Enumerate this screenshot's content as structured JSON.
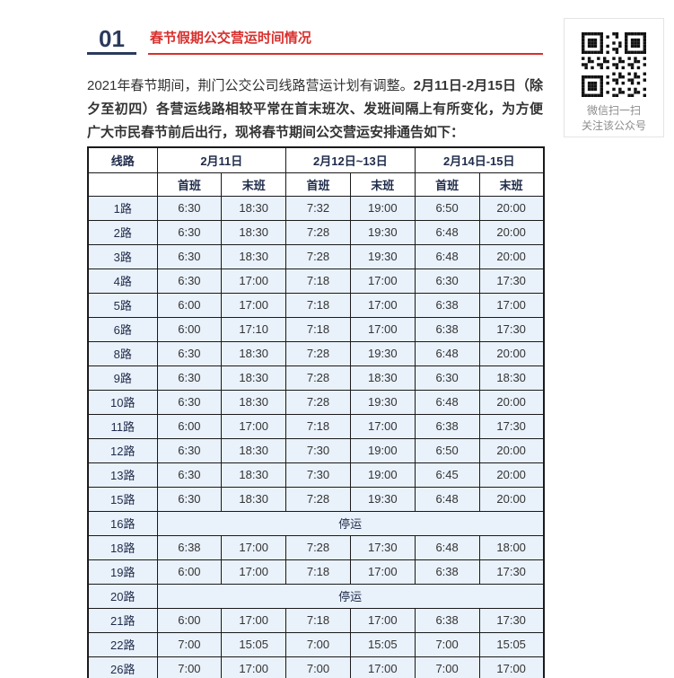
{
  "section": {
    "number": "01",
    "title": "春节假期公交营运时间情况"
  },
  "intro": {
    "lead": "2021年春节期间，荆门公交公司线路营运计划有调整。",
    "emphasis": "2月11日-2月15日（除夕至初四）各营运线路相较平常在首末班次、发班间隔上有所变化，为方便广大市民春节前后出行，现将春节期间公交营运安排通告如下："
  },
  "qr_panel": {
    "caption_line1": "微信扫一扫",
    "caption_line2": "关注该公众号"
  },
  "table": {
    "route_header": "线路",
    "date_groups": [
      "2月11日",
      "2月12日~13日",
      "2月14日-15日"
    ],
    "sub_headers": [
      "首班",
      "末班"
    ],
    "suspended_label": "停运",
    "rows": [
      {
        "route": "1路",
        "times": [
          "6:30",
          "18:30",
          "7:32",
          "19:00",
          "6:50",
          "20:00"
        ]
      },
      {
        "route": "2路",
        "times": [
          "6:30",
          "18:30",
          "7:28",
          "19:30",
          "6:48",
          "20:00"
        ]
      },
      {
        "route": "3路",
        "times": [
          "6:30",
          "18:30",
          "7:28",
          "19:30",
          "6:48",
          "20:00"
        ]
      },
      {
        "route": "4路",
        "times": [
          "6:30",
          "17:00",
          "7:18",
          "17:00",
          "6:30",
          "17:30"
        ]
      },
      {
        "route": "5路",
        "times": [
          "6:00",
          "17:00",
          "7:18",
          "17:00",
          "6:38",
          "17:00"
        ]
      },
      {
        "route": "6路",
        "times": [
          "6:00",
          "17:10",
          "7:18",
          "17:00",
          "6:38",
          "17:30"
        ]
      },
      {
        "route": "8路",
        "times": [
          "6:30",
          "18:30",
          "7:28",
          "19:30",
          "6:48",
          "20:00"
        ]
      },
      {
        "route": "9路",
        "times": [
          "6:30",
          "18:30",
          "7:28",
          "18:30",
          "6:30",
          "18:30"
        ]
      },
      {
        "route": "10路",
        "times": [
          "6:30",
          "18:30",
          "7:28",
          "19:30",
          "6:48",
          "20:00"
        ]
      },
      {
        "route": "11路",
        "times": [
          "6:00",
          "17:00",
          "7:18",
          "17:00",
          "6:38",
          "17:30"
        ]
      },
      {
        "route": "12路",
        "times": [
          "6:30",
          "18:30",
          "7:30",
          "19:00",
          "6:50",
          "20:00"
        ]
      },
      {
        "route": "13路",
        "times": [
          "6:30",
          "18:30",
          "7:30",
          "19:00",
          "6:45",
          "20:00"
        ]
      },
      {
        "route": "15路",
        "times": [
          "6:30",
          "18:30",
          "7:28",
          "19:30",
          "6:48",
          "20:00"
        ]
      },
      {
        "route": "16路",
        "suspended": true
      },
      {
        "route": "18路",
        "times": [
          "6:38",
          "17:00",
          "7:28",
          "17:30",
          "6:48",
          "18:00"
        ]
      },
      {
        "route": "19路",
        "times": [
          "6:00",
          "17:00",
          "7:18",
          "17:00",
          "6:38",
          "17:30"
        ]
      },
      {
        "route": "20路",
        "suspended": true
      },
      {
        "route": "21路",
        "times": [
          "6:00",
          "17:00",
          "7:18",
          "17:00",
          "6:38",
          "17:30"
        ]
      },
      {
        "route": "22路",
        "times": [
          "7:00",
          "15:05",
          "7:00",
          "15:05",
          "7:00",
          "15:05"
        ]
      },
      {
        "route": "26路",
        "times": [
          "7:00",
          "17:00",
          "7:00",
          "17:00",
          "7:00",
          "17:00"
        ]
      }
    ]
  },
  "colors": {
    "accent_navy": "#2b3a5c",
    "accent_red": "#d8302d",
    "table_border": "#1a1a1a",
    "table_row_bg": "#e9f1fa",
    "header_text": "#1f2b4a"
  }
}
